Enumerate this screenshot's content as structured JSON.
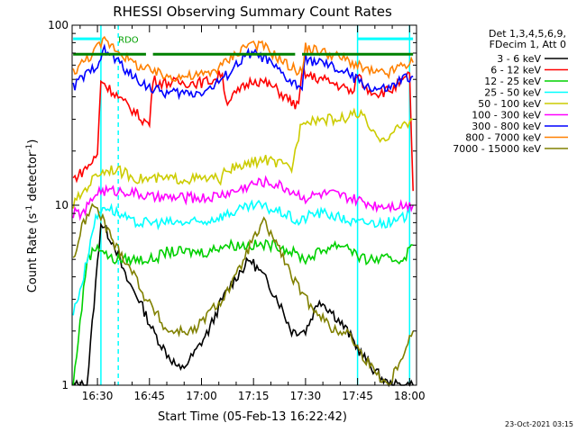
{
  "chart_data": {
    "type": "line",
    "title": "RHESSI Observing Summary Count Rates",
    "xlabel": "Start Time (05-Feb-13 16:22:42)",
    "ylabel_main": "Count Rate (s",
    "ylabel_sup": "-1",
    "ylabel_rest": " detector",
    "ylabel_end": ")",
    "y_scale": "log",
    "ylim": [
      1,
      100
    ],
    "y_ticks": [
      {
        "value": 1,
        "label": "1"
      },
      {
        "value": 10,
        "label": "10"
      },
      {
        "value": 100,
        "label": "100"
      }
    ],
    "x_range_min": [
      22.7,
      122
    ],
    "x_ticks": [
      {
        "value": 30,
        "label": "16:30"
      },
      {
        "value": 45,
        "label": "16:45"
      },
      {
        "value": 60,
        "label": "17:00"
      },
      {
        "value": 75,
        "label": "17:15"
      },
      {
        "value": 90,
        "label": "17:30"
      },
      {
        "value": 105,
        "label": "17:45"
      },
      {
        "value": 120,
        "label": "18:00"
      }
    ],
    "legend_header": [
      "Det 1,3,4,5,6,9,",
      "FDecim 1, Att 0"
    ],
    "legend_position": "right",
    "annotations": [
      {
        "text": "RDO",
        "x": 36,
        "y": 78,
        "color": "#00a000"
      }
    ],
    "series": [
      {
        "name": "3 - 6 keV",
        "color": "#000000",
        "x": [
          23,
          27,
          31,
          35,
          38,
          42,
          46,
          50,
          54,
          58,
          62,
          66,
          70,
          74,
          78,
          82,
          86,
          90,
          94,
          98,
          102,
          106,
          110,
          114,
          118,
          121
        ],
        "values": [
          1,
          1,
          8,
          6,
          4,
          3,
          2,
          1.5,
          1.2,
          1.5,
          2,
          3,
          4,
          5,
          4,
          3,
          2,
          2,
          3,
          2.5,
          2,
          1.5,
          1.2,
          1,
          1,
          1
        ]
      },
      {
        "name": "6 - 12 keV",
        "color": "#ff0000",
        "x": [
          23,
          25,
          28,
          30,
          31,
          33,
          35,
          37,
          40,
          43,
          45,
          46,
          48,
          52,
          56,
          60,
          64,
          66,
          67,
          69,
          72,
          75,
          78,
          81,
          84,
          88,
          89,
          91,
          95,
          100,
          104,
          105,
          107,
          111,
          115,
          119,
          120,
          121
        ],
        "values": [
          14,
          15,
          17,
          19,
          50,
          45,
          42,
          38,
          34,
          30,
          28,
          50,
          48,
          48,
          48,
          48,
          50,
          55,
          38,
          40,
          45,
          50,
          48,
          45,
          40,
          35,
          55,
          52,
          50,
          46,
          42,
          55,
          45,
          42,
          44,
          50,
          55,
          12
        ]
      },
      {
        "name": "12 - 25 keV",
        "color": "#00d000",
        "x": [
          23,
          27,
          30,
          34,
          38,
          42,
          46,
          50,
          54,
          58,
          62,
          66,
          70,
          74,
          78,
          82,
          86,
          90,
          94,
          98,
          102,
          106,
          110,
          114,
          118,
          121
        ],
        "values": [
          1,
          5,
          6,
          5,
          5,
          5,
          5,
          5.5,
          5.5,
          5.5,
          5.5,
          6,
          6,
          6,
          6,
          6,
          5.5,
          5,
          5.5,
          6,
          6,
          5,
          5,
          5,
          5,
          6
        ]
      },
      {
        "name": "25 - 50 keV",
        "color": "#00ffff",
        "x": [
          23,
          26,
          29,
          32,
          36,
          40,
          44,
          48,
          52,
          56,
          60,
          64,
          68,
          72,
          76,
          80,
          84,
          88,
          92,
          96,
          100,
          104,
          108,
          112,
          116,
          120
        ],
        "values": [
          2.5,
          4,
          8,
          10,
          9,
          8,
          8,
          8,
          8,
          8,
          8,
          8.5,
          9,
          9.5,
          10,
          9.5,
          9,
          8,
          9,
          9,
          8.5,
          8,
          8,
          8,
          8,
          9
        ]
      },
      {
        "name": "50 - 100 keV",
        "color": "#cccc00",
        "x": [
          23,
          26,
          30,
          34,
          38,
          42,
          46,
          50,
          54,
          58,
          62,
          66,
          67,
          70,
          74,
          78,
          82,
          86,
          89,
          92,
          96,
          100,
          104,
          106,
          110,
          114,
          118,
          121
        ],
        "values": [
          10,
          12,
          15,
          16,
          15,
          14,
          14,
          14,
          14,
          14,
          14,
          14,
          16,
          16,
          17,
          18,
          17,
          16,
          30,
          30,
          30,
          30,
          32,
          32,
          24,
          24,
          28,
          30
        ]
      },
      {
        "name": "100 - 300 keV",
        "color": "#ff00ff",
        "x": [
          23,
          26,
          30,
          34,
          38,
          42,
          46,
          50,
          54,
          58,
          62,
          66,
          70,
          74,
          78,
          82,
          86,
          90,
          94,
          98,
          102,
          106,
          110,
          114,
          118,
          121
        ],
        "values": [
          9,
          9,
          12,
          12,
          12,
          11.5,
          11,
          11,
          11,
          11,
          11,
          11.5,
          12,
          13,
          13.5,
          13,
          12,
          11,
          11.5,
          11.5,
          11,
          10.5,
          10,
          10,
          10,
          10
        ]
      },
      {
        "name": "300 - 800 keV",
        "color": "#0000ff",
        "x": [
          23,
          25,
          28,
          30,
          32,
          34,
          37,
          40,
          43,
          46,
          50,
          54,
          58,
          62,
          66,
          70,
          74,
          78,
          82,
          86,
          89,
          90,
          94,
          98,
          102,
          106,
          110,
          114,
          118,
          121
        ],
        "values": [
          45,
          50,
          55,
          62,
          72,
          68,
          60,
          52,
          48,
          44,
          42,
          42,
          42,
          44,
          50,
          60,
          70,
          66,
          56,
          48,
          45,
          65,
          62,
          58,
          54,
          48,
          44,
          44,
          50,
          52
        ]
      },
      {
        "name": "800 - 7000 keV",
        "color": "#ff8000",
        "x": [
          23,
          25,
          28,
          30,
          32,
          34,
          37,
          40,
          43,
          46,
          50,
          54,
          58,
          62,
          66,
          70,
          74,
          78,
          82,
          86,
          89,
          90,
          94,
          98,
          102,
          106,
          110,
          114,
          118,
          121
        ],
        "values": [
          55,
          60,
          68,
          75,
          82,
          78,
          70,
          62,
          58,
          55,
          52,
          52,
          52,
          54,
          60,
          70,
          80,
          76,
          66,
          58,
          55,
          75,
          72,
          68,
          64,
          58,
          54,
          54,
          60,
          62
        ]
      },
      {
        "name": "7000 - 15000 keV",
        "color": "#808000",
        "x": [
          23,
          26,
          29,
          32,
          35,
          38,
          41,
          44,
          47,
          50,
          54,
          58,
          62,
          66,
          70,
          74,
          78,
          82,
          86,
          90,
          94,
          98,
          102,
          106,
          110,
          114,
          118,
          121
        ],
        "values": [
          5,
          8,
          10,
          8,
          6,
          5,
          4,
          3,
          2.5,
          2,
          2,
          2,
          2.5,
          3,
          4,
          6,
          8,
          6,
          4,
          3,
          2.5,
          2,
          2,
          1.5,
          1.2,
          1,
          1.5,
          2
        ]
      }
    ],
    "reference_lines": [
      {
        "color": "#008000",
        "y": 69,
        "segments": [
          [
            23,
            44
          ],
          [
            46,
            87
          ],
          [
            89,
            121
          ]
        ]
      },
      {
        "color": "#00ffff",
        "y": 84,
        "segments": [
          [
            23,
            31
          ]
        ]
      },
      {
        "color": "#00ffff",
        "y": 84,
        "segments": [
          [
            105,
            121
          ]
        ]
      }
    ],
    "vertical_markers": [
      {
        "color": "#00ffff",
        "x": 31,
        "style": "solid"
      },
      {
        "color": "#00ffff",
        "x": 36,
        "style": "dashed"
      },
      {
        "color": "#00ffff",
        "x": 105,
        "style": "solid"
      },
      {
        "color": "#00ffff",
        "x": 120,
        "style": "solid"
      }
    ],
    "footer_date": "23-Oct-2021 03:15"
  }
}
